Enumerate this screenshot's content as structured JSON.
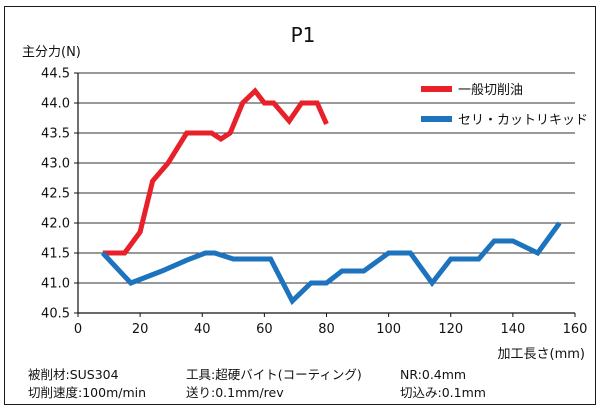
{
  "chart_data": {
    "type": "line",
    "title": "P1",
    "ylabel": "主分力(N)",
    "xlabel": "加工長さ(mm)",
    "xlim": [
      0,
      160
    ],
    "ylim": [
      40.5,
      44.5
    ],
    "x_ticks": [
      "0",
      "20",
      "40",
      "60",
      "80",
      "100",
      "120",
      "140",
      "160"
    ],
    "y_ticks": [
      "40.5",
      "41.0",
      "41.5",
      "42.0",
      "42.5",
      "43.0",
      "43.5",
      "44.0",
      "44.5"
    ],
    "grid": "horizontal",
    "legend_position": "top-right",
    "series": [
      {
        "name": "一般切削油",
        "color": "#e8202a",
        "points": [
          [
            8,
            41.5
          ],
          [
            15,
            41.5
          ],
          [
            20,
            41.85
          ],
          [
            24,
            42.7
          ],
          [
            29,
            43.0
          ],
          [
            35,
            43.5
          ],
          [
            40,
            43.5
          ],
          [
            43,
            43.5
          ],
          [
            46,
            43.4
          ],
          [
            49,
            43.5
          ],
          [
            53,
            44.0
          ],
          [
            57,
            44.2
          ],
          [
            60,
            44.0
          ],
          [
            63,
            44.0
          ],
          [
            68,
            43.7
          ],
          [
            72,
            44.0
          ],
          [
            75,
            44.0
          ],
          [
            77,
            44.0
          ],
          [
            80,
            43.65
          ]
        ]
      },
      {
        "name": "セリ・カットリキッド",
        "color": "#1e73be",
        "points": [
          [
            8,
            41.5
          ],
          [
            17,
            41.0
          ],
          [
            27,
            41.2
          ],
          [
            35,
            41.38
          ],
          [
            41,
            41.5
          ],
          [
            44,
            41.5
          ],
          [
            50,
            41.4
          ],
          [
            58,
            41.4
          ],
          [
            62,
            41.4
          ],
          [
            69,
            40.7
          ],
          [
            75,
            41.0
          ],
          [
            80,
            41.0
          ],
          [
            85,
            41.2
          ],
          [
            92,
            41.2
          ],
          [
            100,
            41.5
          ],
          [
            107,
            41.5
          ],
          [
            114,
            41.0
          ],
          [
            120,
            41.4
          ],
          [
            129,
            41.4
          ],
          [
            134,
            41.7
          ],
          [
            140,
            41.7
          ],
          [
            148,
            41.5
          ],
          [
            155,
            42.0
          ]
        ]
      }
    ]
  },
  "footer": {
    "material": "被削材:SUS304",
    "speed": "切削速度:100m/min",
    "tool": "工具:超硬バイト(コーティング)",
    "feed": "送り:0.1mm/rev",
    "nr": "NR:0.4mm",
    "depth": "切込み:0.1mm"
  }
}
